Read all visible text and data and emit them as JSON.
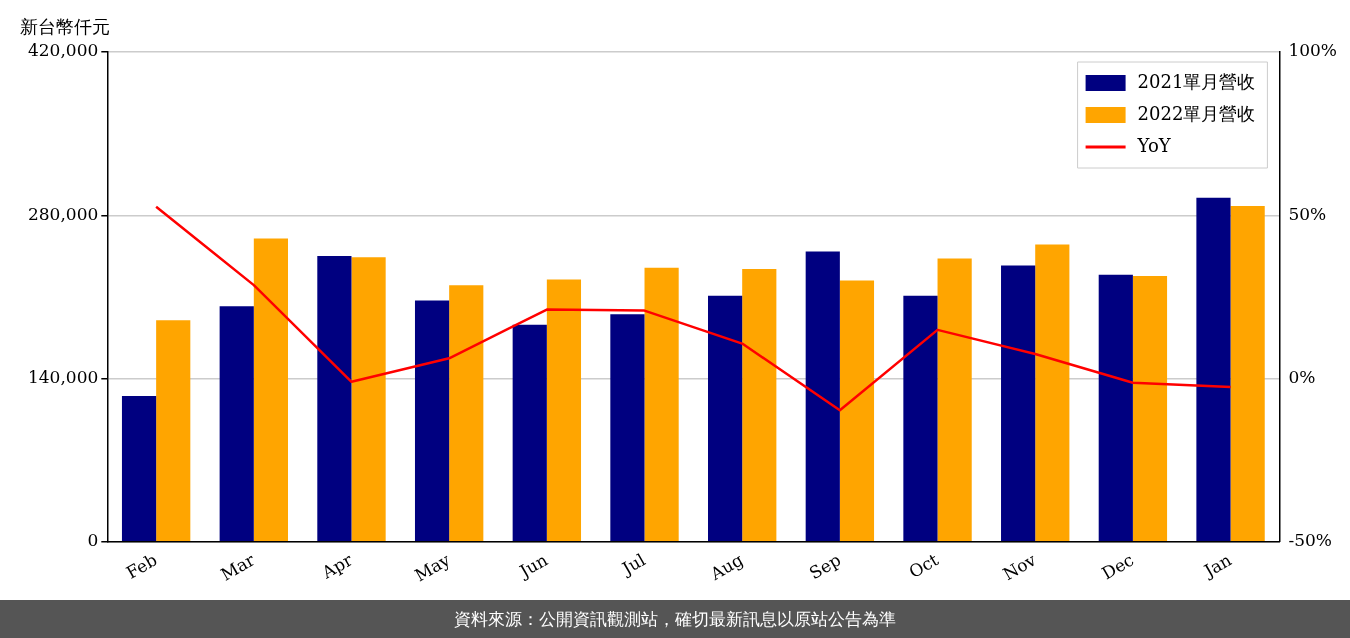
{
  "chart_data": {
    "type": "bar",
    "ylabel": "新台幣仟元",
    "categories": [
      "Feb",
      "Mar",
      "Apr",
      "May",
      "Jun",
      "Jul",
      "Aug",
      "Sep",
      "Oct",
      "Nov",
      "Dec",
      "Jan"
    ],
    "series": [
      {
        "name": "2021單月營收",
        "color": "#000080",
        "values": [
          125000,
          202000,
          245000,
          207000,
          186000,
          195000,
          211000,
          249000,
          211000,
          237000,
          229000,
          295000
        ]
      },
      {
        "name": "2022單月營收",
        "color": "#ffa500",
        "values": [
          190000,
          260000,
          244000,
          220000,
          225000,
          235000,
          234000,
          224000,
          243000,
          255000,
          228000,
          288000
        ]
      },
      {
        "name": "YoY",
        "type": "line",
        "axis": "y2",
        "color": "#ff0000",
        "values": [
          52.6,
          28.6,
          -1,
          6.2,
          21.1,
          20.8,
          10.7,
          -9.7,
          14.9,
          7.5,
          -1.3,
          -2.6
        ]
      }
    ],
    "ylim": [
      0,
      420000
    ],
    "yticks": [
      {
        "value": 0,
        "label": "0"
      },
      {
        "value": 140000,
        "label": "140,000"
      },
      {
        "value": 280000,
        "label": "280,000"
      },
      {
        "value": 420000,
        "label": "420,000"
      }
    ],
    "y2lim": [
      -50,
      100
    ],
    "y2ticks": [
      {
        "value": -50,
        "label": "-50%"
      },
      {
        "value": 0,
        "label": "0%"
      },
      {
        "value": 50,
        "label": "50%"
      },
      {
        "value": 100,
        "label": "100%"
      }
    ],
    "grid": "y",
    "legend": "top right",
    "marker": "none",
    "line_style": "solid",
    "annotations": [
      "資料來源：公開資訊觀測站，確切最新訊息以原站公告為準"
    ]
  }
}
